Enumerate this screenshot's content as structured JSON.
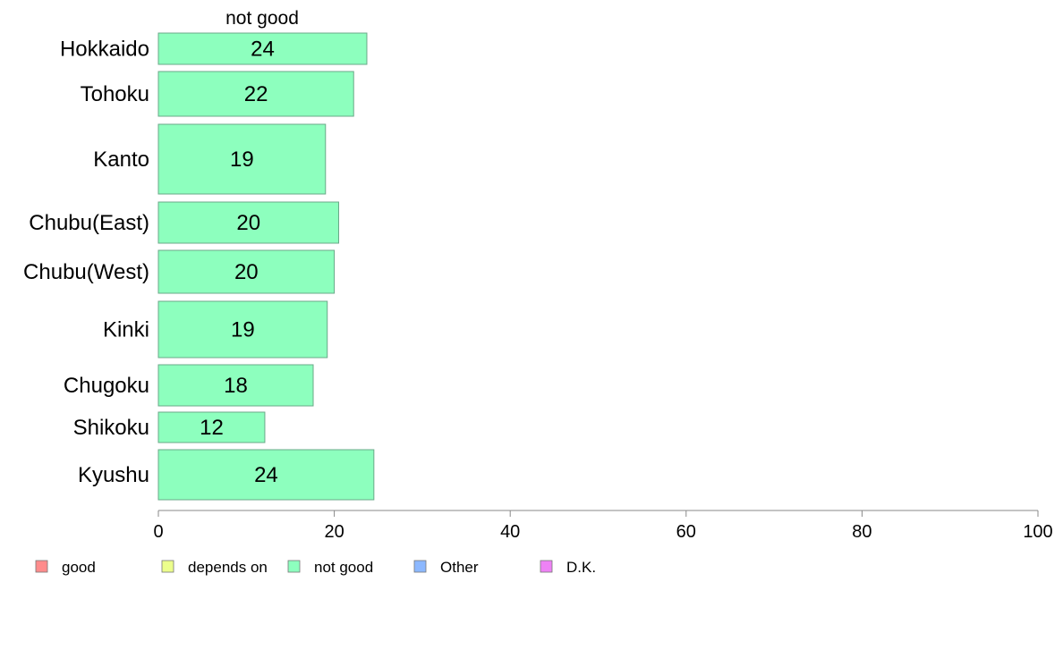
{
  "chart_data": {
    "type": "bar",
    "orientation": "horizontal",
    "series_title": "not good",
    "categories": [
      "Hokkaido",
      "Tohoku",
      "Kanto",
      "Chubu(East)",
      "Chubu(West)",
      "Kinki",
      "Chugoku",
      "Shikoku",
      "Kyushu"
    ],
    "values": [
      23.7,
      22.2,
      19.0,
      20.5,
      20.0,
      19.2,
      17.6,
      12.1,
      24.5
    ],
    "value_labels": [
      "24",
      "22",
      "19",
      "20",
      "20",
      "19",
      "18",
      "12",
      "24"
    ],
    "xlim": [
      0,
      100
    ],
    "xticks": [
      "0",
      "20",
      "40",
      "60",
      "80",
      "100"
    ],
    "bar_color": "#8dffbe",
    "bar_border": "#6aa888",
    "grid": false,
    "legend_position": "bottom",
    "legend": [
      {
        "label": "good",
        "color": "#ff8c8c"
      },
      {
        "label": "depends on",
        "color": "#ecff8c"
      },
      {
        "label": "not good",
        "color": "#8dffbe"
      },
      {
        "label": "Other",
        "color": "#8cb8ff"
      },
      {
        "label": "D.K.",
        "color": "#ee82f5"
      }
    ]
  }
}
